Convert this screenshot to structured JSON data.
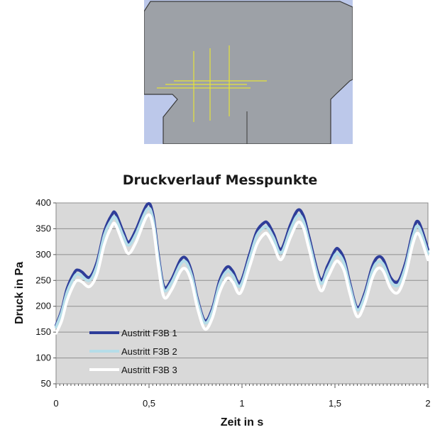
{
  "geometry_view": {
    "colors": {
      "background": "#bcc8ea",
      "part": "#9da1a7",
      "edge": "#3a3a3a",
      "probe_lines": "#e6e33b"
    }
  },
  "chart_data": {
    "type": "line",
    "title": "Druckverlauf Messpunkte",
    "xlabel": "Zeit in s",
    "ylabel": "Druck in Pa",
    "xlim": [
      0,
      2
    ],
    "ylim": [
      50,
      400
    ],
    "x_ticks": [
      0,
      0.5,
      1,
      1.5,
      2
    ],
    "x_tick_labels": [
      "0",
      "0,5",
      "1",
      "1,5",
      "2"
    ],
    "y_ticks": [
      50,
      100,
      150,
      200,
      250,
      300,
      350,
      400
    ],
    "y_tick_labels": [
      "50",
      "100",
      "150",
      "200",
      "250",
      "300",
      "350",
      "400"
    ],
    "grid": "horizontal",
    "plot_background": "#d9d9d9",
    "legend_position": "lower-left",
    "x": [
      0,
      0.03,
      0.06,
      0.1,
      0.12,
      0.14,
      0.18,
      0.22,
      0.26,
      0.3,
      0.32,
      0.36,
      0.39,
      0.43,
      0.49,
      0.52,
      0.55,
      0.58,
      0.62,
      0.67,
      0.7,
      0.73,
      0.76,
      0.8,
      0.84,
      0.88,
      0.92,
      0.95,
      0.99,
      1.04,
      1.08,
      1.12,
      1.14,
      1.17,
      1.21,
      1.26,
      1.3,
      1.33,
      1.36,
      1.42,
      1.46,
      1.5,
      1.52,
      1.55,
      1.58,
      1.62,
      1.66,
      1.7,
      1.73,
      1.76,
      1.8,
      1.84,
      1.88,
      1.92,
      1.95,
      2
    ],
    "series": [
      {
        "name": "Austritt F3B 1",
        "color": "#2e3d99",
        "width": 4,
        "values": [
          163,
          192,
          235,
          266,
          270,
          266,
          256,
          285,
          345,
          377,
          380,
          345,
          324,
          348,
          397,
          380,
          300,
          238,
          251,
          290,
          292,
          265,
          215,
          172,
          195,
          250,
          276,
          268,
          245,
          300,
          345,
          362,
          360,
          340,
          310,
          357,
          386,
          375,
          335,
          253,
          278,
          308,
          310,
          290,
          245,
          197,
          225,
          276,
          295,
          290,
          255,
          248,
          285,
          345,
          363,
          310
        ]
      },
      {
        "name": "Austritt F3B 2",
        "color": "#b5dde8",
        "width": 4,
        "values": [
          160,
          188,
          228,
          258,
          262,
          258,
          250,
          278,
          338,
          368,
          371,
          337,
          318,
          340,
          388,
          371,
          292,
          232,
          245,
          282,
          285,
          258,
          210,
          168,
          190,
          243,
          268,
          260,
          239,
          292,
          337,
          353,
          351,
          332,
          303,
          348,
          376,
          365,
          326,
          246,
          270,
          299,
          301,
          282,
          239,
          193,
          219,
          268,
          286,
          281,
          248,
          241,
          277,
          336,
          354,
          302
        ]
      },
      {
        "name": "Austritt F3B 3",
        "color": "#ffffff",
        "width": 4,
        "values": [
          148,
          172,
          212,
          245,
          250,
          247,
          238,
          262,
          320,
          355,
          358,
          322,
          302,
          324,
          375,
          358,
          278,
          218,
          231,
          268,
          271,
          245,
          197,
          156,
          177,
          228,
          254,
          247,
          225,
          276,
          320,
          340,
          338,
          318,
          290,
          333,
          362,
          352,
          312,
          232,
          255,
          284,
          286,
          268,
          225,
          180,
          205,
          254,
          273,
          268,
          234,
          227,
          262,
          322,
          340,
          290
        ]
      }
    ]
  }
}
